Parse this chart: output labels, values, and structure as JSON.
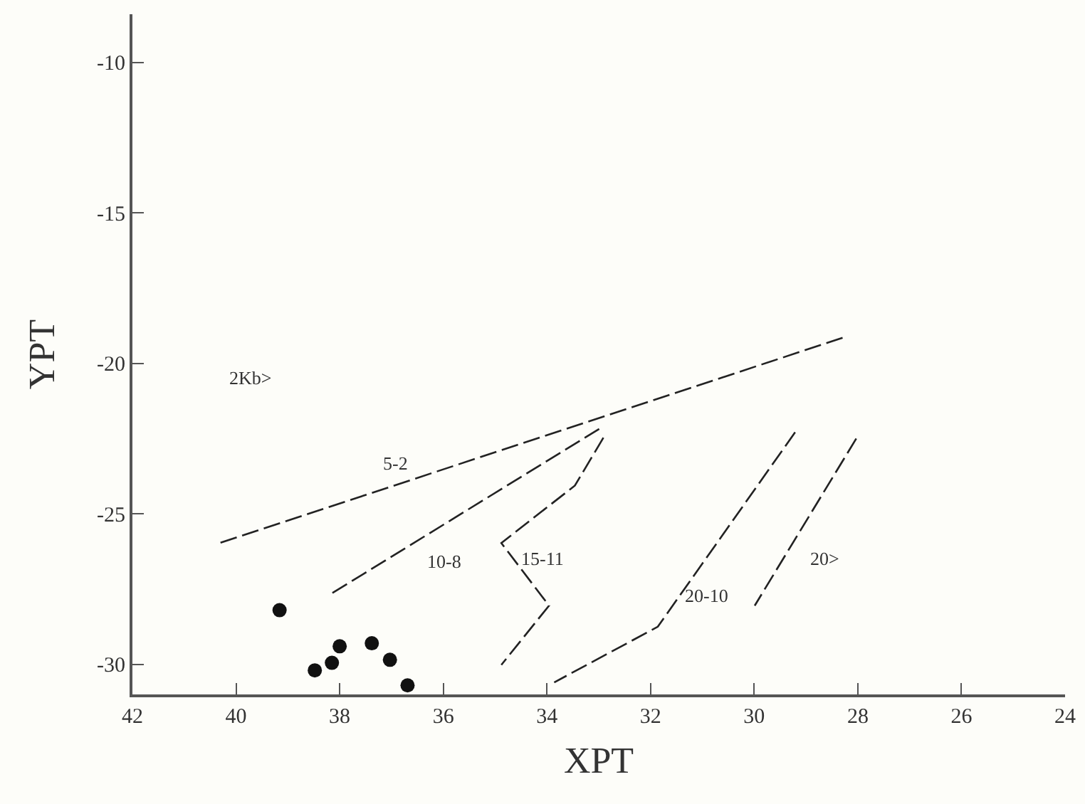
{
  "chart_data": {
    "type": "scatter",
    "xlabel": "XPT",
    "ylabel": "YPT",
    "xlim": [
      42,
      24
    ],
    "ylim": [
      -31,
      -8.4
    ],
    "xticks": [
      42,
      40,
      38,
      36,
      34,
      32,
      30,
      28,
      26,
      24
    ],
    "yticks": [
      -10,
      -15,
      -20,
      -25,
      -30
    ],
    "series": [
      {
        "marker": "circle",
        "color": "#111111",
        "x": [
          39.16,
          38.48,
          38.15,
          38.0,
          37.38,
          37.03,
          36.69
        ],
        "values": [
          -28.2,
          -30.2,
          -29.95,
          -29.4,
          -29.3,
          -29.85,
          -30.7
        ]
      },
      {
        "type": "line",
        "marker": "none",
        "line_style": "dashed",
        "color": "#222222",
        "x": [
          40.3,
          28.22
        ],
        "values": [
          -25.96,
          -19.11
        ]
      },
      {
        "type": "line",
        "marker": "none",
        "line_style": "dashed",
        "color": "#222222",
        "x": [
          38.14,
          32.9
        ],
        "values": [
          -27.63,
          -22.08
        ]
      },
      {
        "type": "line",
        "marker": "none",
        "line_style": "dashed",
        "color": "#222222",
        "x": [
          32.91,
          33.46,
          34.88,
          33.96,
          34.88
        ],
        "values": [
          -22.47,
          -24.06,
          -25.97,
          -28.05,
          -30.02
        ]
      },
      {
        "type": "line",
        "marker": "none",
        "line_style": "dashed",
        "color": "#222222",
        "x": [
          29.21,
          31.86,
          33.86
        ],
        "values": [
          -22.29,
          -28.75,
          -30.6
        ]
      },
      {
        "type": "line",
        "marker": "none",
        "line_style": "dashed",
        "color": "#222222",
        "x": [
          28.03,
          29.99
        ],
        "values": [
          -22.5,
          -28.05
        ]
      }
    ],
    "annotations": [
      "2Kb>",
      "5-2",
      "10-8",
      "15-11",
      "20-10",
      "20>"
    ]
  }
}
